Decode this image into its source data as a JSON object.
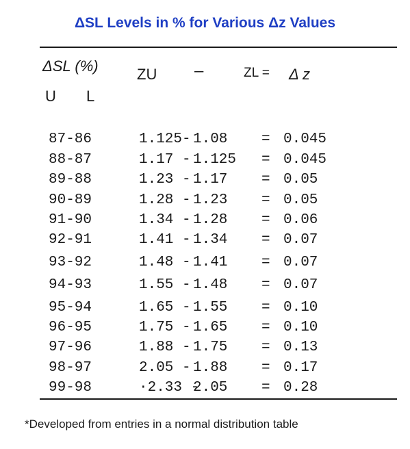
{
  "title": "ΔSL Levels in % for Various Δz Values",
  "header": {
    "delta_sl": "ΔSL (%)",
    "zu": "ZU",
    "dash": "–",
    "zl": "ZL =",
    "delta_z": "Δ z",
    "u": "U",
    "l": "L"
  },
  "rows": [
    {
      "range": "87-86",
      "zu": "1.125-",
      "zl": "1.08",
      "eq": "=",
      "dz": "0.045"
    },
    {
      "range": "88-87",
      "zu": "1.17 -",
      "zl": "1.125",
      "eq": "=",
      "dz": "0.045"
    },
    {
      "range": "89-88",
      "zu": "1.23 -",
      "zl": "1.17",
      "eq": "=",
      "dz": "0.05"
    },
    {
      "range": "90-89",
      "zu": "1.28 -",
      "zl": "1.23",
      "eq": "=",
      "dz": "0.05"
    },
    {
      "range": "91-90",
      "zu": "1.34 -",
      "zl": "1.28",
      "eq": "=",
      "dz": "0.06"
    },
    {
      "range": "92-91",
      "zu": "1.41 -",
      "zl": "1.34",
      "eq": "=",
      "dz": "0.07"
    },
    {
      "range": "93-92",
      "zu": "1.48 -",
      "zl": "1.41",
      "eq": "=",
      "dz": "0.07"
    },
    {
      "range": "94-93",
      "zu": "1.55 -",
      "zl": "1.48",
      "eq": "=",
      "dz": "0.07"
    },
    {
      "range": "95-94",
      "zu": "1.65 -",
      "zl": "1.55",
      "eq": "=",
      "dz": "0.10"
    },
    {
      "range": "96-95",
      "zu": "1.75 -",
      "zl": "1.65",
      "eq": "=",
      "dz": "0.10"
    },
    {
      "range": "97-96",
      "zu": "1.88 -",
      "zl": "1.75",
      "eq": "=",
      "dz": "0.13"
    },
    {
      "range": "98-97",
      "zu": "2.05 -",
      "zl": "1.88",
      "eq": "=",
      "dz": "0.17"
    },
    {
      "range": "99-98",
      "zu": "·2.33 -",
      "zl": "2.05",
      "eq": "=",
      "dz": "0.28"
    }
  ],
  "footnote": "*Developed from entries in a normal distribution table",
  "colors": {
    "title": "#1f3fc4",
    "text": "#1a1a1a"
  }
}
